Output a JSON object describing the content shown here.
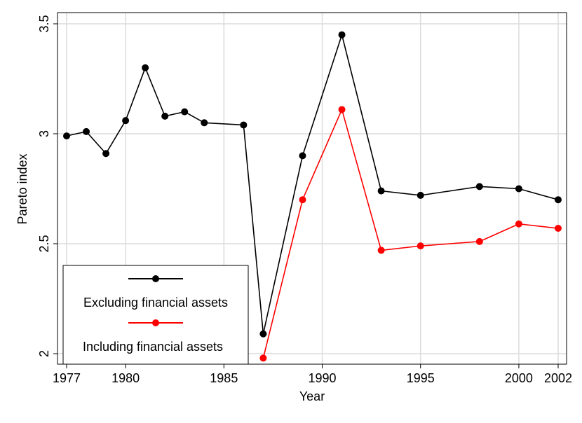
{
  "chart_data": {
    "type": "line",
    "xlabel": "Year",
    "ylabel": "Pareto index",
    "xlim": [
      1977,
      2002
    ],
    "ylim": [
      2,
      3.5
    ],
    "xticks": [
      1977,
      1980,
      1985,
      1990,
      1995,
      2000,
      2002
    ],
    "yticks": [
      2,
      2.5,
      3,
      3.5
    ],
    "ytick_labels": [
      "2",
      "2.5",
      "3",
      "3.5"
    ],
    "grid": true,
    "legend_position": "bottom-left",
    "series": [
      {
        "name": "Excluding financial assets",
        "color": "#000000",
        "marker": "circle",
        "x": [
          1977,
          1978,
          1979,
          1980,
          1981,
          1982,
          1983,
          1984,
          1986,
          1987,
          1989,
          1991,
          1993,
          1995,
          1998,
          2000,
          2002
        ],
        "y": [
          2.99,
          3.01,
          2.91,
          3.06,
          3.3,
          3.08,
          3.1,
          3.05,
          3.04,
          2.09,
          2.9,
          3.45,
          2.74,
          2.72,
          2.76,
          2.75,
          2.7
        ]
      },
      {
        "name": "Including financial assets",
        "color": "#ff0000",
        "marker": "circle",
        "x": [
          1987,
          1989,
          1991,
          1993,
          1995,
          1998,
          2000,
          2002
        ],
        "y": [
          1.98,
          2.7,
          3.11,
          2.47,
          2.49,
          2.51,
          2.59,
          2.57
        ]
      }
    ]
  }
}
